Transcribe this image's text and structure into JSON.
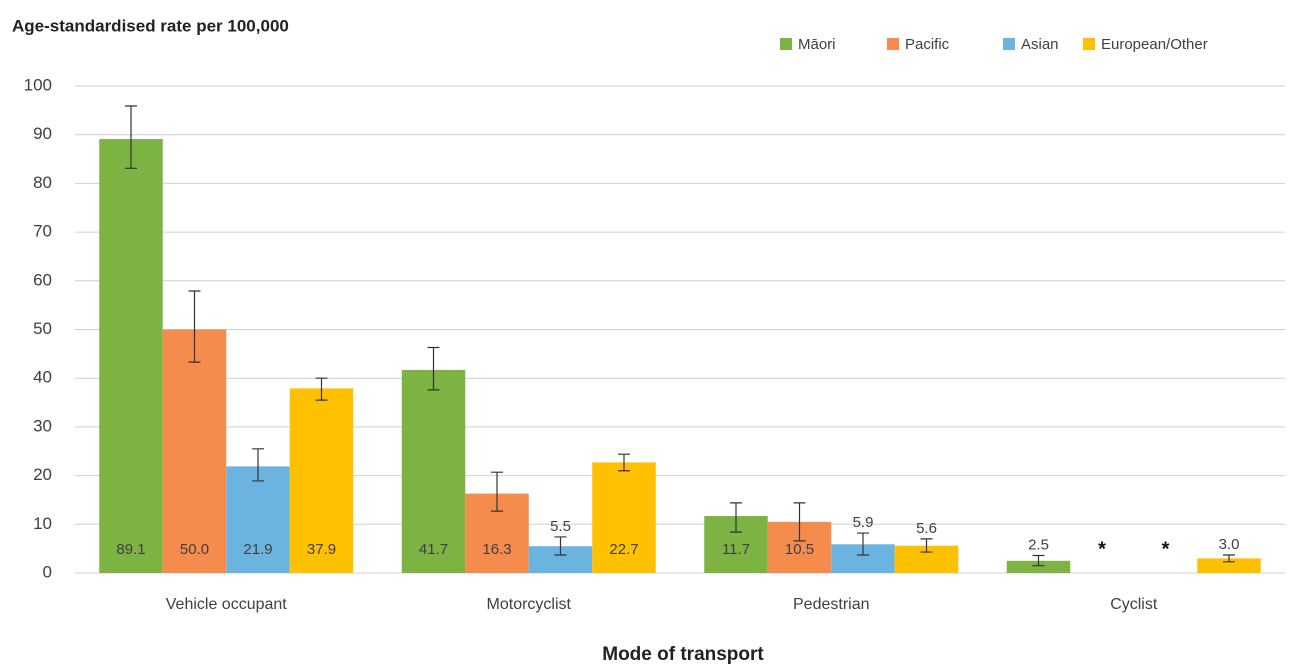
{
  "chart_data": {
    "type": "bar",
    "title": "Age-standardised rate per 100,000",
    "x_label": "Mode of transport",
    "categories": [
      "Vehicle occupant",
      "Motorcyclist",
      "Pedestrian",
      "Cyclist"
    ],
    "series": [
      {
        "name": "Māori",
        "color": "#7cb342",
        "values": [
          89.1,
          41.7,
          11.7,
          2.5
        ],
        "value_labels": [
          "89.1",
          "41.7",
          "11.7",
          "2.5"
        ],
        "ci_lower": [
          83.1,
          37.6,
          8.4,
          1.5
        ],
        "ci_upper": [
          95.9,
          46.3,
          14.4,
          3.6
        ]
      },
      {
        "name": "Pacific",
        "color": "#f58b4c",
        "values": [
          50.0,
          16.3,
          10.5,
          null
        ],
        "value_labels": [
          "50.0",
          "16.3",
          "10.5",
          "*"
        ],
        "ci_lower": [
          43.3,
          12.7,
          6.6,
          null
        ],
        "ci_upper": [
          57.9,
          20.7,
          14.4,
          null
        ]
      },
      {
        "name": "Asian",
        "color": "#6cb4e0",
        "values": [
          21.9,
          5.5,
          5.9,
          null
        ],
        "value_labels": [
          "21.9",
          "5.5",
          "5.9",
          "*"
        ],
        "ci_lower": [
          18.9,
          3.7,
          3.7,
          null
        ],
        "ci_upper": [
          25.5,
          7.4,
          8.2,
          null
        ]
      },
      {
        "name": "European/Other",
        "color": "#ffc000",
        "values": [
          37.9,
          22.7,
          5.6,
          3.0
        ],
        "value_labels": [
          "37.9",
          "22.7",
          "5.6",
          "3.0"
        ],
        "ci_lower": [
          35.5,
          21.0,
          4.3,
          2.3
        ],
        "ci_upper": [
          40.0,
          24.4,
          7.0,
          3.7
        ]
      }
    ],
    "ylim": [
      0,
      100
    ],
    "yticks": [
      0,
      10,
      20,
      30,
      40,
      50,
      60,
      70,
      80,
      90,
      100
    ],
    "grid": true,
    "legend": "top-right"
  }
}
